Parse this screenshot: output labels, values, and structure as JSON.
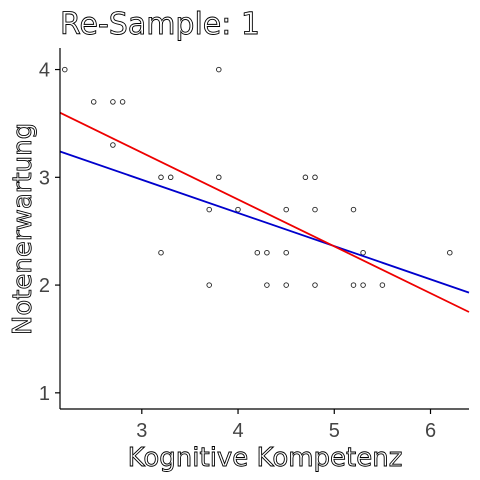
{
  "chart_data": {
    "type": "scatter",
    "title": "Re-Sample: 1",
    "xlabel": "Kognitive Kompetenz",
    "ylabel": "Notenerwartung",
    "xlim": [
      2.15,
      6.4
    ],
    "ylim": [
      0.85,
      4.2
    ],
    "x_ticks": [
      3,
      4,
      5,
      6
    ],
    "y_ticks": [
      1,
      2,
      3,
      4
    ],
    "grid": false,
    "points": [
      {
        "x": 2.2,
        "y": 4.0
      },
      {
        "x": 2.5,
        "y": 3.7
      },
      {
        "x": 2.7,
        "y": 3.7
      },
      {
        "x": 2.8,
        "y": 3.7
      },
      {
        "x": 3.8,
        "y": 4.0
      },
      {
        "x": 2.7,
        "y": 3.3
      },
      {
        "x": 3.2,
        "y": 3.0
      },
      {
        "x": 3.3,
        "y": 3.0
      },
      {
        "x": 3.8,
        "y": 3.0
      },
      {
        "x": 3.7,
        "y": 2.7
      },
      {
        "x": 4.0,
        "y": 2.7
      },
      {
        "x": 3.2,
        "y": 2.3
      },
      {
        "x": 3.7,
        "y": 2.0
      },
      {
        "x": 4.2,
        "y": 2.3
      },
      {
        "x": 4.3,
        "y": 2.3
      },
      {
        "x": 4.3,
        "y": 2.0
      },
      {
        "x": 4.5,
        "y": 2.7
      },
      {
        "x": 4.5,
        "y": 2.3
      },
      {
        "x": 4.5,
        "y": 2.0
      },
      {
        "x": 4.7,
        "y": 3.0
      },
      {
        "x": 4.8,
        "y": 3.0
      },
      {
        "x": 4.8,
        "y": 2.7
      },
      {
        "x": 4.8,
        "y": 2.0
      },
      {
        "x": 5.2,
        "y": 2.7
      },
      {
        "x": 5.3,
        "y": 2.3
      },
      {
        "x": 5.2,
        "y": 2.0
      },
      {
        "x": 5.3,
        "y": 2.0
      },
      {
        "x": 5.5,
        "y": 2.0
      },
      {
        "x": 6.2,
        "y": 2.3
      }
    ],
    "lines": [
      {
        "color": "#0000cc",
        "x": [
          2.15,
          6.4
        ],
        "y": [
          3.24,
          1.93
        ]
      },
      {
        "color": "#ee0000",
        "x": [
          2.15,
          6.4
        ],
        "y": [
          3.6,
          1.75
        ]
      }
    ]
  }
}
